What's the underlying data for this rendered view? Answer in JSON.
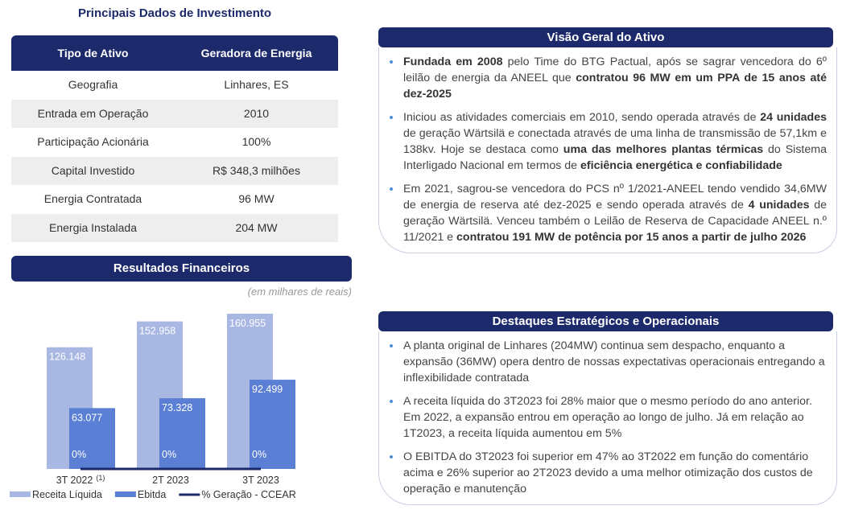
{
  "left_title": "Principais Dados de Investimento",
  "table": {
    "header": [
      "Tipo de Ativo",
      "Geradora de Energia"
    ],
    "rows": [
      [
        "Geografia",
        "Linhares, ES"
      ],
      [
        "Entrada em Operação",
        "2010"
      ],
      [
        "Participação Acionária",
        "100%"
      ],
      [
        "Capital Investido",
        "R$ 348,3 milhões"
      ],
      [
        "Energia Contratada",
        "96 MW"
      ],
      [
        "Energia Instalada",
        "204 MW"
      ]
    ]
  },
  "results_title": "Resultados Financeiros",
  "chart_data": {
    "type": "bar",
    "subtitle": "(em milhares de reais)",
    "categories": [
      "3T 2022",
      "2T 2023",
      "3T 2023"
    ],
    "category_superscripts": [
      "(1)",
      null,
      null
    ],
    "series": [
      {
        "name": "Receita Líquida",
        "color": "#a9b7e3",
        "values": [
          126148,
          152958,
          160955
        ],
        "value_labels": [
          "126.148",
          "152.958",
          "160.955"
        ]
      },
      {
        "name": "Ebitda",
        "color": "#5a7fd5",
        "values": [
          63077,
          73328,
          92499
        ],
        "value_labels": [
          "63.077",
          "73.328",
          "92.499"
        ]
      },
      {
        "name": "% Geração - CCEAR",
        "color": "#1c2a6b",
        "type": "line",
        "values": [
          0,
          0,
          0
        ],
        "value_labels": [
          "0%",
          "0%",
          "0%"
        ]
      }
    ]
  },
  "panels": [
    {
      "title": "Visão Geral do Ativo",
      "bullets": [
        [
          {
            "text": "Fundada em 2008",
            "bold": true
          },
          {
            "text": " pelo Time do BTG Pactual, após se sagrar vencedora do 6º leilão de energia da ANEEL que "
          },
          {
            "text": "contratou 96 MW em um PPA de 15 anos até dez-2025",
            "bold": true
          }
        ],
        [
          {
            "text": "Iniciou as atividades comerciais em 2010, sendo operada através de "
          },
          {
            "text": "24 unidades",
            "bold": true
          },
          {
            "text": " de geração Wärtsilä e conectada através de uma linha de transmissão de 57,1km e 138kv. Hoje se destaca como "
          },
          {
            "text": "uma das melhores plantas térmicas",
            "bold": true
          },
          {
            "text": " do Sistema Interligado Nacional em termos de "
          },
          {
            "text": "eficiência energética e confiabilidade",
            "bold": true
          }
        ],
        [
          {
            "text": "Em 2021, sagrou-se vencedora do PCS nº 1/2021-ANEEL tendo vendido 34,6MW de energia de reserva até dez-2025 e sendo operada através de "
          },
          {
            "text": "4 unidades",
            "bold": true
          },
          {
            "text": " de geração Wärtsilä. Venceu também o Leilão de Reserva de Capacidade ANEEL n.º 11/2021 e "
          },
          {
            "text": "contratou 191 MW de potência por 15 anos a partir de julho 2026",
            "bold": true
          }
        ]
      ]
    },
    {
      "title": "Destaques Estratégicos e Operacionais",
      "bullets": [
        [
          {
            "text": "A planta original de Linhares (204MW) continua sem despacho, enquanto a expansão (36MW) opera dentro de nossas expectativas operacionais entregando a inflexibilidade contratada"
          }
        ],
        [
          {
            "text": "A receita líquida do 3T2023 foi 28% maior que o mesmo período do ano anterior. Em 2022, a expansão entrou em operação ao longo de julho. Já em relação ao 1T2023, a receita líquida aumentou em 5%"
          }
        ],
        [
          {
            "text": "O EBITDA do 3T2023 foi superior em 47% ao 3T2022 em função do comentário acima e 26% superior ao 2T2023 devido a uma melhor otimização dos custos de operação e manutenção"
          }
        ]
      ]
    }
  ]
}
